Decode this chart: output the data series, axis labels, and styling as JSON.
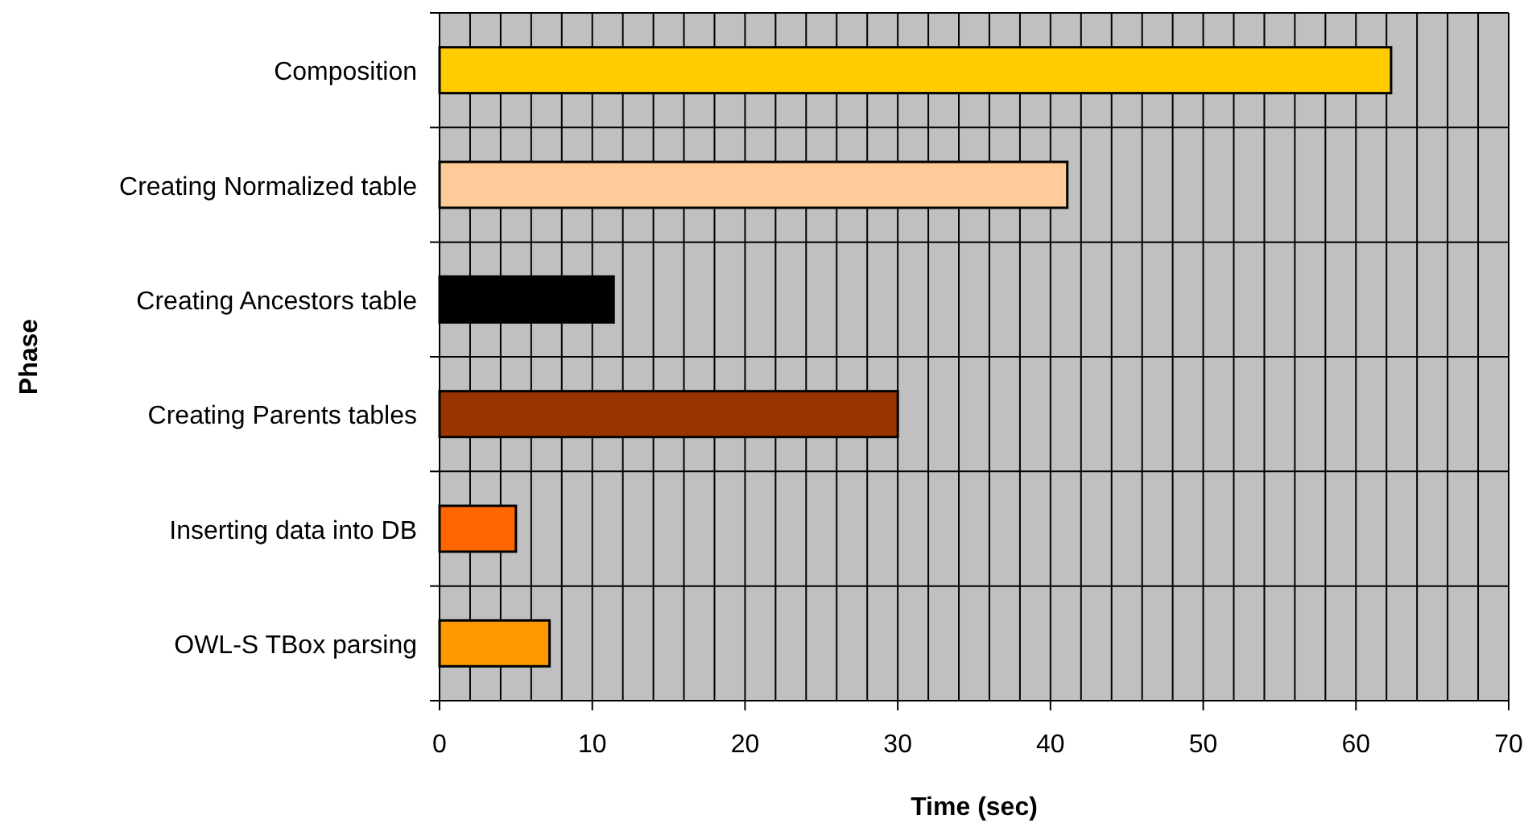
{
  "chart_data": {
    "type": "bar",
    "orientation": "horizontal",
    "xlabel": "Time (sec)",
    "ylabel": "Phase",
    "categories": [
      "Composition",
      "Creating Normalized table",
      "Creating Ancestors table",
      "Creating Parents tables",
      "Inserting data into DB",
      "OWL-S TBox parsing"
    ],
    "values": [
      62.3,
      41.1,
      11.4,
      30.0,
      5.0,
      7.2
    ],
    "colors": [
      "#ffcc00",
      "#ffcc99",
      "#000000",
      "#993300",
      "#ff6600",
      "#ff9900"
    ],
    "xlim": [
      0,
      70
    ],
    "xticks": [
      0,
      {
        "value": 2,
        "label": null
      },
      {
        "value": 4,
        "label": null
      },
      {
        "value": 6,
        "label": null
      },
      {
        "value": 8,
        "label": null
      },
      10,
      {
        "value": 12,
        "label": null
      },
      {
        "value": 14,
        "label": null
      },
      {
        "value": 16,
        "label": null
      },
      {
        "value": 18,
        "label": null
      },
      20,
      {
        "value": 22,
        "label": null
      },
      {
        "value": 24,
        "label": null
      },
      {
        "value": 26,
        "label": null
      },
      {
        "value": 28,
        "label": null
      },
      30,
      {
        "value": 32,
        "label": null
      },
      {
        "value": 34,
        "label": null
      },
      {
        "value": 36,
        "label": null
      },
      {
        "value": 38,
        "label": null
      },
      40,
      {
        "value": 42,
        "label": null
      },
      {
        "value": 44,
        "label": null
      },
      {
        "value": 46,
        "label": null
      },
      {
        "value": 48,
        "label": null
      },
      50,
      {
        "value": 52,
        "label": null
      },
      {
        "value": 54,
        "label": null
      },
      {
        "value": 56,
        "label": null
      },
      {
        "value": 58,
        "label": null
      },
      60,
      {
        "value": 62,
        "label": null
      },
      {
        "value": 64,
        "label": null
      },
      {
        "value": 66,
        "label": null
      },
      {
        "value": 68,
        "label": null
      },
      70
    ],
    "grid": true
  }
}
